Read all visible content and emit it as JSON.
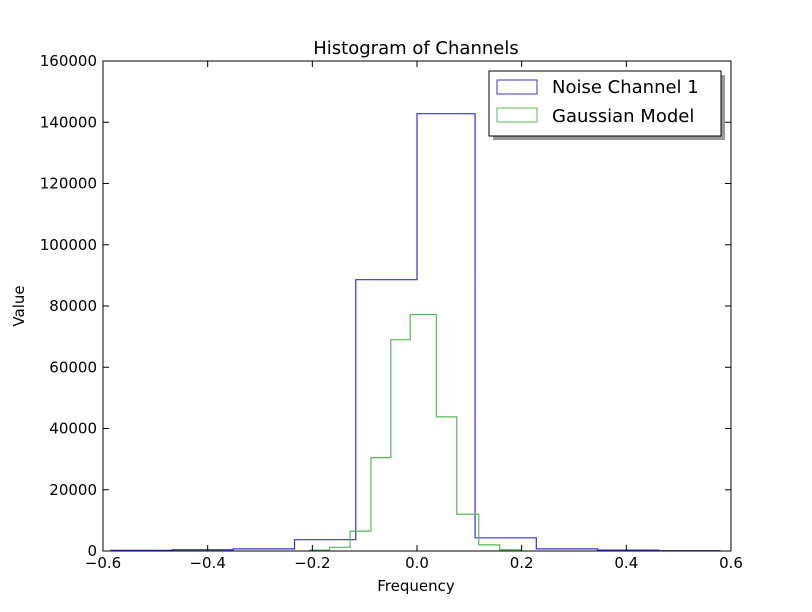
{
  "chart_data": {
    "type": "histogram",
    "title": "Histogram of Channels",
    "xlabel": "Frequency",
    "ylabel": "Value",
    "xlim": [
      -0.6,
      0.6
    ],
    "ylim": [
      0,
      160000
    ],
    "xticks": [
      -0.6,
      -0.4,
      -0.2,
      0.0,
      0.2,
      0.4,
      0.6
    ],
    "xtick_labels": [
      "−0.6",
      "−0.4",
      "−0.2",
      "0.0",
      "0.2",
      "0.4",
      "0.6"
    ],
    "yticks": [
      0,
      20000,
      40000,
      60000,
      80000,
      100000,
      120000,
      140000,
      160000
    ],
    "ytick_labels": [
      "0",
      "20000",
      "40000",
      "60000",
      "80000",
      "100000",
      "120000",
      "140000",
      "160000"
    ],
    "grid": false,
    "legend_position": "top-right",
    "series": [
      {
        "name": "Noise Channel 1",
        "color": "#3333dd",
        "edges": [
          -0.585,
          -0.468,
          -0.351,
          -0.234,
          -0.117,
          0.0,
          0.111,
          0.228,
          0.345,
          0.462,
          0.579
        ],
        "values": [
          200,
          400,
          700,
          3700,
          88600,
          142800,
          4300,
          700,
          300,
          100
        ]
      },
      {
        "name": "Gaussian Model",
        "color": "#55bb55",
        "edges": [
          -0.205,
          -0.167,
          -0.128,
          -0.088,
          -0.05,
          -0.013,
          0.037,
          0.076,
          0.118,
          0.158,
          0.198
        ],
        "values": [
          300,
          1200,
          6500,
          30500,
          69000,
          77200,
          43800,
          12000,
          2000,
          400
        ]
      }
    ]
  }
}
